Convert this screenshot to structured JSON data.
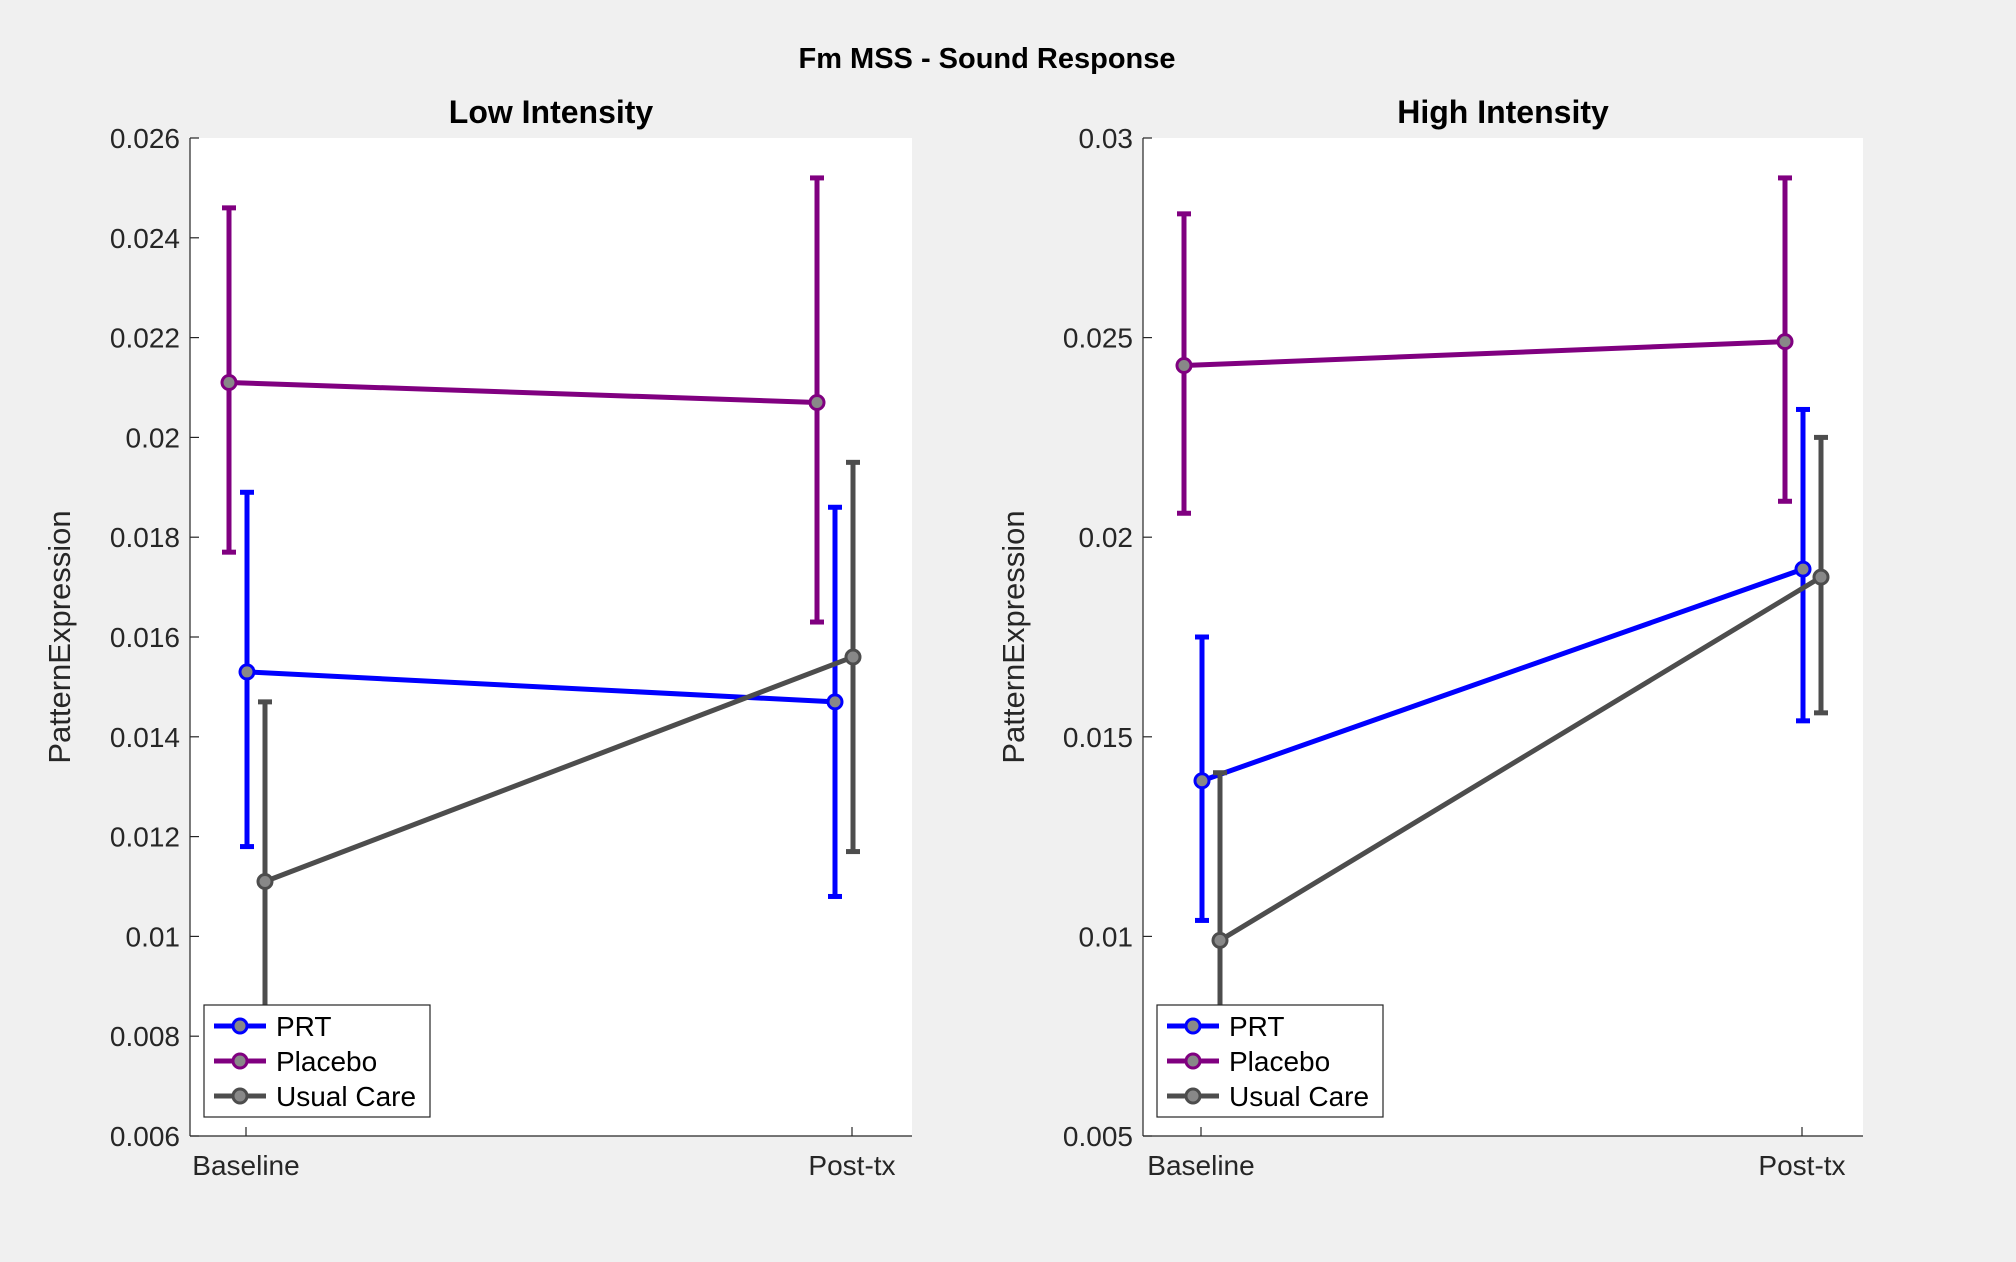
{
  "figure": {
    "suptitle": "Fm MSS - Sound Response"
  },
  "chart_data": [
    {
      "type": "line",
      "title": "Low Intensity",
      "xlabel": "",
      "ylabel": "PatternExpression",
      "categories": [
        "Baseline",
        "Post-tx"
      ],
      "ylim": [
        0.006,
        0.026
      ],
      "yticks": [
        0.006,
        0.008,
        0.01,
        0.012,
        0.014,
        0.016,
        0.018,
        0.02,
        0.022,
        0.024,
        0.026
      ],
      "ytick_labels": [
        "0.006",
        "0.008",
        "0.01",
        "0.012",
        "0.014",
        "0.016",
        "0.018",
        "0.02",
        "0.022",
        "0.024",
        "0.026"
      ],
      "grid": false,
      "legend_position": "bottom-left",
      "series": [
        {
          "name": "PRT",
          "color": "#0000ff",
          "values": [
            0.0153,
            0.0147
          ],
          "err_low": [
            0.0118,
            0.0108
          ],
          "err_high": [
            0.0189,
            0.0186
          ]
        },
        {
          "name": "Placebo",
          "color": "#800080",
          "values": [
            0.0211,
            0.0207
          ],
          "err_low": [
            0.0177,
            0.0163
          ],
          "err_high": [
            0.0246,
            0.0252
          ]
        },
        {
          "name": "Usual Care",
          "color": "#4d4d4d",
          "values": [
            0.0111,
            0.0156
          ],
          "err_low": [
            0.0076,
            0.0117
          ],
          "err_high": [
            0.0147,
            0.0195
          ]
        }
      ]
    },
    {
      "type": "line",
      "title": "High Intensity",
      "xlabel": "",
      "ylabel": "PatternExpression",
      "categories": [
        "Baseline",
        "Post-tx"
      ],
      "ylim": [
        0.005,
        0.03
      ],
      "yticks": [
        0.005,
        0.01,
        0.015,
        0.02,
        0.025,
        0.03
      ],
      "ytick_labels": [
        "0.005",
        "0.01",
        "0.015",
        "0.02",
        "0.025",
        "0.03"
      ],
      "grid": false,
      "legend_position": "bottom-left",
      "series": [
        {
          "name": "PRT",
          "color": "#0000ff",
          "values": [
            0.0139,
            0.0192
          ],
          "err_low": [
            0.0104,
            0.0154
          ],
          "err_high": [
            0.0175,
            0.0232
          ]
        },
        {
          "name": "Placebo",
          "color": "#800080",
          "values": [
            0.0243,
            0.0249
          ],
          "err_low": [
            0.0206,
            0.0209
          ],
          "err_high": [
            0.0281,
            0.029
          ]
        },
        {
          "name": "Usual Care",
          "color": "#4d4d4d",
          "values": [
            0.0099,
            0.019
          ],
          "err_low": [
            0.0064,
            0.0156
          ],
          "err_high": [
            0.0141,
            0.0225
          ]
        }
      ]
    }
  ]
}
